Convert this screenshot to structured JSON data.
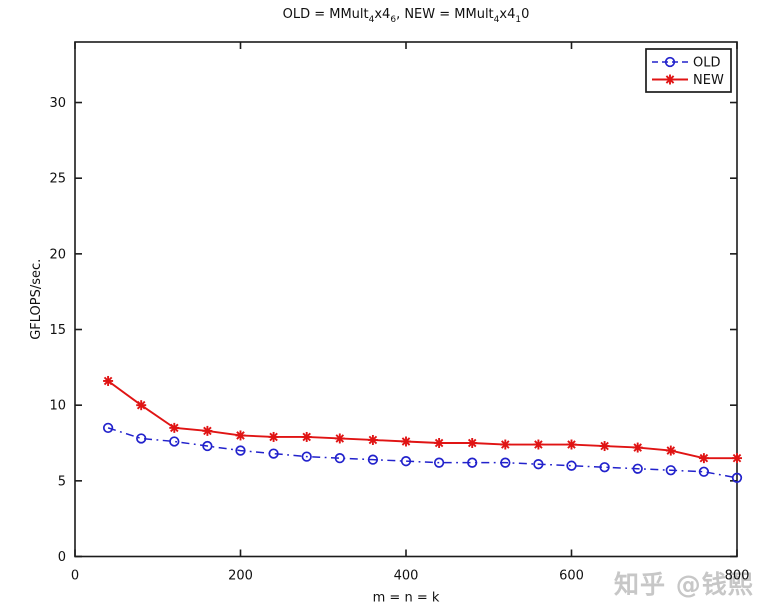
{
  "figure": {
    "title_plain": "OLD = MMult_4x4_6, NEW = MMult_4x4_10",
    "title_segments": [
      {
        "text": "OLD = MMult",
        "sub": false
      },
      {
        "text": "4",
        "sub": true
      },
      {
        "text": "x4",
        "sub": false
      },
      {
        "text": "6",
        "sub": true
      },
      {
        "text": ", NEW = MMult",
        "sub": false
      },
      {
        "text": "4",
        "sub": true
      },
      {
        "text": "x4",
        "sub": false
      },
      {
        "text": "1",
        "sub": true
      },
      {
        "text": "0",
        "sub": false
      }
    ],
    "watermark": "知乎 @钱熙",
    "colors": {
      "background": "#ffffff",
      "axis": "#1c1c1c",
      "old_series": "#2222cc",
      "new_series": "#e01414",
      "watermark": "#c7c7c7",
      "legend_background": "#ffffff"
    }
  },
  "chart_data": {
    "type": "line",
    "title": "OLD = MMult_4x4_6, NEW = MMult_4x4_10",
    "xlabel": "m = n = k",
    "ylabel": "GFLOPS/sec.",
    "xlim": [
      0,
      800
    ],
    "ylim": [
      0,
      34
    ],
    "x_ticks": [
      0,
      200,
      400,
      600,
      800
    ],
    "y_ticks": [
      0,
      5,
      10,
      15,
      20,
      25,
      30
    ],
    "grid": false,
    "legend_position": "top-right",
    "x": [
      40,
      80,
      120,
      160,
      200,
      240,
      280,
      320,
      360,
      400,
      440,
      480,
      520,
      560,
      600,
      640,
      680,
      720,
      760,
      800
    ],
    "series": [
      {
        "name": "OLD",
        "color": "#2222cc",
        "line_style": "dash-dot",
        "marker": "circle",
        "values": [
          8.5,
          7.8,
          7.6,
          7.3,
          7.0,
          6.8,
          6.6,
          6.5,
          6.4,
          6.3,
          6.2,
          6.2,
          6.2,
          6.1,
          6.0,
          5.9,
          5.8,
          5.7,
          5.6,
          5.2
        ]
      },
      {
        "name": "NEW",
        "color": "#e01414",
        "line_style": "solid",
        "marker": "asterisk",
        "values": [
          11.6,
          10.0,
          8.5,
          8.3,
          8.0,
          7.9,
          7.9,
          7.8,
          7.7,
          7.6,
          7.5,
          7.5,
          7.4,
          7.4,
          7.4,
          7.3,
          7.2,
          7.0,
          6.5,
          6.5
        ]
      }
    ]
  }
}
